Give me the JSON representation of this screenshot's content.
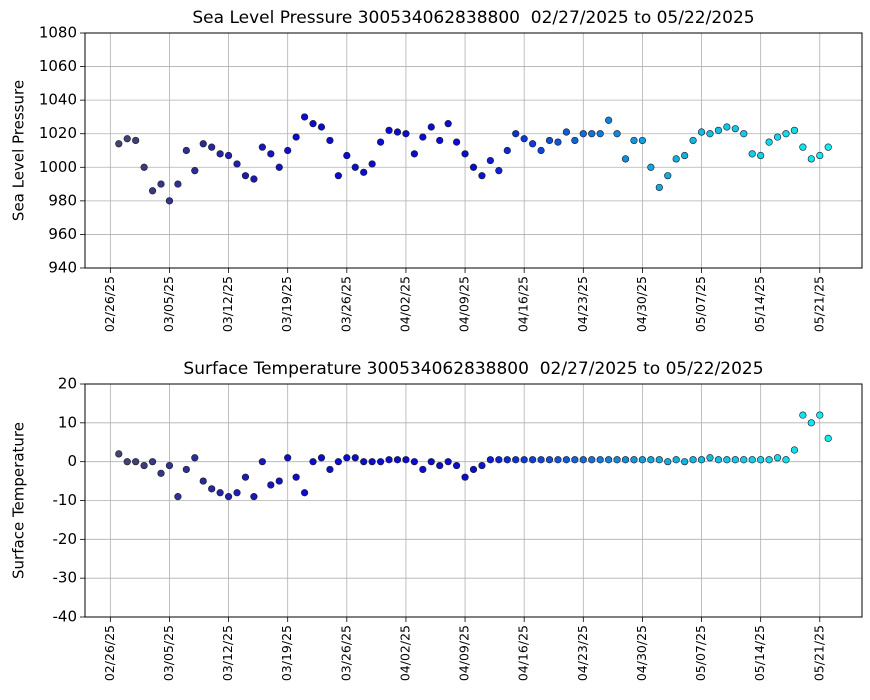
{
  "chart_data": [
    {
      "type": "scatter",
      "title": "Sea Level Pressure 300534062838800  02/27/2025 to 05/22/2025",
      "y_label": "Sea Level Pressure",
      "x": [
        "02/27/25",
        "02/28/25",
        "03/01/25",
        "03/02/25",
        "03/03/25",
        "03/04/25",
        "03/05/25",
        "03/06/25",
        "03/07/25",
        "03/08/25",
        "03/09/25",
        "03/10/25",
        "03/11/25",
        "03/12/25",
        "03/13/25",
        "03/14/25",
        "03/15/25",
        "03/16/25",
        "03/17/25",
        "03/18/25",
        "03/19/25",
        "03/20/25",
        "03/21/25",
        "03/22/25",
        "03/23/25",
        "03/24/25",
        "03/25/25",
        "03/26/25",
        "03/27/25",
        "03/28/25",
        "03/29/25",
        "03/30/25",
        "03/31/25",
        "04/01/25",
        "04/02/25",
        "04/03/25",
        "04/04/25",
        "04/05/25",
        "04/06/25",
        "04/07/25",
        "04/08/25",
        "04/09/25",
        "04/10/25",
        "04/11/25",
        "04/12/25",
        "04/13/25",
        "04/14/25",
        "04/15/25",
        "04/16/25",
        "04/17/25",
        "04/18/25",
        "04/19/25",
        "04/20/25",
        "04/21/25",
        "04/22/25",
        "04/23/25",
        "04/24/25",
        "04/25/25",
        "04/26/25",
        "04/27/25",
        "04/28/25",
        "04/29/25",
        "04/30/25",
        "05/01/25",
        "05/02/25",
        "05/03/25",
        "05/04/25",
        "05/05/25",
        "05/06/25",
        "05/07/25",
        "05/08/25",
        "05/09/25",
        "05/10/25",
        "05/11/25",
        "05/12/25",
        "05/13/25",
        "05/14/25",
        "05/15/25",
        "05/16/25",
        "05/17/25",
        "05/18/25",
        "05/19/25",
        "05/20/25",
        "05/21/25",
        "05/22/25"
      ],
      "values": [
        1014,
        1017,
        1016,
        1000,
        986,
        990,
        980,
        990,
        1010,
        998,
        1014,
        1012,
        1008,
        1007,
        1002,
        995,
        993,
        1012,
        1008,
        1000,
        1010,
        1018,
        1030,
        1026,
        1024,
        1016,
        995,
        1007,
        1000,
        997,
        1002,
        1015,
        1022,
        1021,
        1020,
        1008,
        1018,
        1024,
        1016,
        1026,
        1015,
        1008,
        1000,
        995,
        1004,
        998,
        1010,
        1020,
        1017,
        1014,
        1010,
        1016,
        1015,
        1021,
        1016,
        1020,
        1020,
        1020,
        1028,
        1020,
        1005,
        1016,
        1016,
        1000,
        988,
        995,
        1005,
        1007,
        1016,
        1021,
        1020,
        1022,
        1024,
        1023,
        1020,
        1008,
        1007,
        1015,
        1018,
        1020,
        1022,
        1012,
        1005,
        1007,
        1012
      ],
      "colormap": [
        "#44446e",
        "#0c0cd0",
        "#0c0cd0",
        "#12a6dc",
        "#10eeee"
      ],
      "xlim": [
        "02/23/25",
        "05/26/25"
      ],
      "xticks": [
        "02/26/25",
        "03/05/25",
        "03/12/25",
        "03/19/25",
        "03/26/25",
        "04/02/25",
        "04/09/25",
        "04/16/25",
        "04/23/25",
        "04/30/25",
        "05/07/25",
        "05/14/25",
        "05/21/25"
      ],
      "ylim": [
        940,
        1080
      ],
      "yticks": [
        940,
        960,
        980,
        1000,
        1020,
        1040,
        1060,
        1080
      ],
      "grid": true
    },
    {
      "type": "scatter",
      "title": "Surface Temperature 300534062838800  02/27/2025 to 05/22/2025",
      "y_label": "Surface Temperature",
      "x": [
        "02/27/25",
        "02/28/25",
        "03/01/25",
        "03/02/25",
        "03/03/25",
        "03/04/25",
        "03/05/25",
        "03/06/25",
        "03/07/25",
        "03/08/25",
        "03/09/25",
        "03/10/25",
        "03/11/25",
        "03/12/25",
        "03/13/25",
        "03/14/25",
        "03/15/25",
        "03/16/25",
        "03/17/25",
        "03/18/25",
        "03/19/25",
        "03/20/25",
        "03/21/25",
        "03/22/25",
        "03/23/25",
        "03/24/25",
        "03/25/25",
        "03/26/25",
        "03/27/25",
        "03/28/25",
        "03/29/25",
        "03/30/25",
        "03/31/25",
        "04/01/25",
        "04/02/25",
        "04/03/25",
        "04/04/25",
        "04/05/25",
        "04/06/25",
        "04/07/25",
        "04/08/25",
        "04/09/25",
        "04/10/25",
        "04/11/25",
        "04/12/25",
        "04/13/25",
        "04/14/25",
        "04/15/25",
        "04/16/25",
        "04/17/25",
        "04/18/25",
        "04/19/25",
        "04/20/25",
        "04/21/25",
        "04/22/25",
        "04/23/25",
        "04/24/25",
        "04/25/25",
        "04/26/25",
        "04/27/25",
        "04/28/25",
        "04/29/25",
        "04/30/25",
        "05/01/25",
        "05/02/25",
        "05/03/25",
        "05/04/25",
        "05/05/25",
        "05/06/25",
        "05/07/25",
        "05/08/25",
        "05/09/25",
        "05/10/25",
        "05/11/25",
        "05/12/25",
        "05/13/25",
        "05/14/25",
        "05/15/25",
        "05/16/25",
        "05/17/25",
        "05/18/25",
        "05/19/25",
        "05/20/25",
        "05/21/25",
        "05/22/25"
      ],
      "values": [
        2,
        0,
        0,
        -1,
        0,
        -3,
        -1,
        -9,
        -2,
        1,
        -5,
        -7,
        -8,
        -9,
        -8,
        -4,
        -9,
        0,
        -6,
        -5,
        1,
        -4,
        -8,
        0,
        1,
        -2,
        0,
        1,
        1,
        0,
        0,
        0,
        0.5,
        0.5,
        0.5,
        0,
        -2,
        0,
        -1,
        0,
        -1,
        -4,
        -2,
        -1,
        0.5,
        0.5,
        0.5,
        0.5,
        0.5,
        0.5,
        0.5,
        0.5,
        0.5,
        0.5,
        0.5,
        0.5,
        0.5,
        0.5,
        0.5,
        0.5,
        0.5,
        0.5,
        0.5,
        0.5,
        0.5,
        0,
        0.5,
        0,
        0.5,
        0.5,
        1,
        0.5,
        0.5,
        0.5,
        0.5,
        0.5,
        0.5,
        0.5,
        1,
        0.5,
        3,
        12,
        10,
        12,
        6
      ],
      "colormap": [
        "#44446e",
        "#0c0cd0",
        "#0c0cd0",
        "#12a6dc",
        "#10eeee"
      ],
      "xlim": [
        "02/23/25",
        "05/26/25"
      ],
      "xticks": [
        "02/26/25",
        "03/05/25",
        "03/12/25",
        "03/19/25",
        "03/26/25",
        "04/02/25",
        "04/09/25",
        "04/16/25",
        "04/23/25",
        "04/30/25",
        "05/07/25",
        "05/14/25",
        "05/21/25"
      ],
      "ylim": [
        -40,
        20
      ],
      "yticks": [
        -40,
        -30,
        -20,
        -10,
        0,
        10,
        20
      ],
      "grid": true
    }
  ]
}
